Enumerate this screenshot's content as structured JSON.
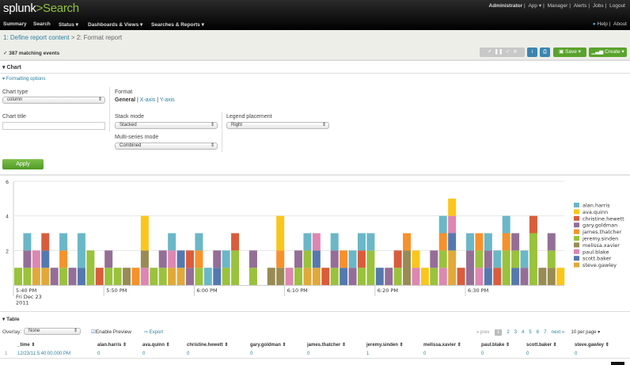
{
  "header": {
    "logo_brand": "splunk",
    "logo_sep": ">",
    "logo_app": "Search",
    "account": [
      "Administrator",
      "App ▾",
      "Manager",
      "Alerts",
      "Jobs",
      "Logout"
    ],
    "nav": [
      "Summary",
      "Search",
      "Status ▾",
      "Dashboards & Views ▾",
      "Searches & Reports ▾"
    ],
    "help": "Help",
    "about": "About"
  },
  "breadcrumb": {
    "step1": "1: Define report content",
    "sep": " > ",
    "step2": "2: Format report"
  },
  "status": {
    "check_icon": "✓",
    "matching": "387 matching events"
  },
  "toolbar": {
    "save": "Save ▾",
    "create": "Create ▾",
    "info": "i",
    "print": "⎙"
  },
  "chart_section": {
    "title": "Chart",
    "formatting": "Formatting options",
    "chart_type_label": "Chart type",
    "chart_type_value": "column",
    "format_label": "Format",
    "format_general": "General",
    "format_xaxis": "X-axis",
    "format_yaxis": "Y-axis",
    "chart_title_label": "Chart title",
    "chart_title_value": "",
    "stack_mode_label": "Stack mode",
    "stack_mode_value": "Stacked",
    "multi_series_label": "Multi-series mode",
    "multi_series_value": "Combined",
    "legend_label": "Legend placement",
    "legend_value": "Right",
    "apply": "Apply"
  },
  "chart_data": {
    "type": "bar",
    "stacked": true,
    "legend_placement": "right",
    "grid": true,
    "ylim": [
      0,
      6
    ],
    "yticks": [
      "2",
      "4",
      "6"
    ],
    "xticks": [
      "5:40 PM",
      "5:50 PM",
      "6:00 PM",
      "6:10 PM",
      "6:20 PM",
      "6:30 PM"
    ],
    "xtick_sub": [
      "Fri Dec 23",
      "2011"
    ],
    "x_start": "2011-12-23 17:40",
    "x_step_minutes": 1,
    "series": [
      {
        "name": "alan.harris",
        "color": "#6ab7c8",
        "values": [
          0,
          1,
          0,
          0,
          0,
          1,
          0,
          2,
          0,
          0,
          0,
          0,
          0,
          0,
          0,
          0,
          0,
          1,
          0,
          0,
          1,
          1,
          0,
          1,
          0,
          0,
          0,
          0,
          0,
          0,
          0,
          0,
          1,
          0,
          0,
          1,
          0,
          1,
          1,
          1,
          0,
          0,
          0,
          0,
          0,
          0,
          0,
          1,
          0,
          0,
          1,
          0,
          1,
          1,
          1,
          0,
          1,
          0,
          0,
          0,
          0
        ]
      },
      {
        "name": "ava.quinn",
        "color": "#fbc61c",
        "values": [
          0,
          0,
          0,
          0,
          0,
          0,
          0,
          0,
          0,
          0,
          0,
          0,
          0,
          0,
          2,
          0,
          0,
          0,
          0,
          0,
          0,
          0,
          0,
          0,
          0,
          0,
          0,
          0,
          0,
          2,
          0,
          0,
          0,
          0,
          0,
          0,
          0,
          0,
          0,
          0,
          0,
          0,
          0,
          0,
          1,
          1,
          0,
          0,
          1,
          0,
          0,
          0,
          0,
          0,
          0,
          0,
          0,
          0,
          0,
          0,
          1
        ]
      },
      {
        "name": "christine.hewett",
        "color": "#d95d3c",
        "values": [
          0,
          0,
          0,
          1,
          0,
          0,
          0,
          0,
          0,
          1,
          0,
          0,
          0,
          0,
          0,
          0,
          0,
          0,
          0,
          1,
          0,
          0,
          0,
          0,
          1,
          0,
          0,
          0,
          0,
          0,
          0,
          0,
          0,
          0,
          1,
          0,
          0,
          0,
          1,
          0,
          0,
          0,
          1,
          0,
          0,
          0,
          0,
          0,
          0,
          1,
          0,
          0,
          0,
          1,
          0,
          0,
          0,
          1,
          0,
          0,
          0
        ]
      },
      {
        "name": "gary.goldman",
        "color": "#956e97",
        "values": [
          0,
          1,
          0,
          0,
          1,
          0,
          1,
          0,
          0,
          0,
          1,
          0,
          0,
          0,
          0,
          0,
          1,
          0,
          0,
          1,
          0,
          0,
          1,
          0,
          0,
          0,
          1,
          0,
          0,
          0,
          0,
          1,
          0,
          0,
          0,
          1,
          0,
          1,
          0,
          0,
          0,
          1,
          0,
          0,
          0,
          0,
          1,
          0,
          0,
          0,
          2,
          0,
          1,
          0,
          0,
          1,
          1,
          0,
          0,
          1,
          0
        ]
      },
      {
        "name": "james.thatcher",
        "color": "#f7912b",
        "values": [
          0,
          0,
          0,
          0,
          0,
          1,
          0,
          0,
          0,
          0,
          0,
          0,
          0,
          1,
          0,
          0,
          0,
          0,
          0,
          0,
          1,
          0,
          0,
          0,
          0,
          0,
          0,
          0,
          0,
          1,
          0,
          0,
          0,
          0,
          0,
          0,
          1,
          0,
          0,
          0,
          0,
          0,
          0,
          1,
          0,
          0,
          0,
          1,
          0,
          0,
          0,
          1,
          0,
          0,
          1,
          0,
          0,
          0,
          0,
          0,
          0
        ]
      },
      {
        "name": "jeremy.sinden",
        "color": "#9ac23c",
        "values": [
          1,
          1,
          0,
          0,
          0,
          1,
          0,
          0,
          2,
          0,
          1,
          1,
          0,
          0,
          0,
          1,
          1,
          0,
          0,
          0,
          1,
          0,
          0,
          1,
          2,
          0,
          1,
          0,
          0,
          0,
          0,
          1,
          1,
          0,
          0,
          1,
          0,
          0,
          1,
          2,
          0,
          0,
          1,
          0,
          0,
          0,
          1,
          1,
          0,
          0,
          0,
          1,
          0,
          0,
          2,
          1,
          0,
          3,
          0,
          1,
          0
        ]
      },
      {
        "name": "melissa.xavier",
        "color": "#998b54",
        "values": [
          0,
          0,
          0,
          0,
          0,
          0,
          0,
          0,
          0,
          0,
          0,
          0,
          1,
          0,
          1,
          0,
          0,
          0,
          0,
          0,
          0,
          0,
          0,
          0,
          0,
          0,
          0,
          0,
          1,
          1,
          0,
          0,
          0,
          0,
          0,
          0,
          0,
          0,
          0,
          0,
          0,
          0,
          0,
          2,
          0,
          0,
          0,
          0,
          0,
          0,
          0,
          0,
          0,
          0,
          0,
          0,
          0,
          0,
          1,
          1,
          0
        ]
      },
      {
        "name": "paul.blake",
        "color": "#dd87b1",
        "values": [
          0,
          0,
          1,
          0,
          0,
          0,
          0,
          0,
          0,
          0,
          0,
          0,
          0,
          0,
          1,
          0,
          0,
          1,
          0,
          0,
          0,
          0,
          0,
          0,
          0,
          0,
          0,
          0,
          0,
          0,
          1,
          0,
          0,
          1,
          0,
          0,
          0,
          0,
          0,
          0,
          0,
          0,
          0,
          0,
          1,
          0,
          0,
          1,
          1,
          0,
          0,
          1,
          0,
          0,
          0,
          0,
          0,
          0,
          0,
          0,
          0
        ]
      },
      {
        "name": "scott.baker",
        "color": "#5479af",
        "values": [
          0,
          0,
          0,
          1,
          0,
          0,
          0,
          1,
          0,
          0,
          0,
          0,
          0,
          0,
          0,
          0,
          0,
          0,
          1,
          0,
          0,
          0,
          1,
          0,
          0,
          0,
          0,
          0,
          0,
          0,
          0,
          0,
          0,
          1,
          0,
          0,
          1,
          0,
          0,
          0,
          1,
          0,
          0,
          0,
          0,
          0,
          0,
          0,
          1,
          0,
          0,
          0,
          1,
          0,
          0,
          1,
          0,
          0,
          0,
          0,
          0
        ]
      },
      {
        "name": "steve.gawley",
        "color": "#e1a93a",
        "values": [
          0,
          0,
          1,
          1,
          0,
          0,
          0,
          0,
          0,
          0,
          0,
          0,
          0,
          0,
          0,
          0,
          0,
          1,
          1,
          0,
          0,
          0,
          0,
          0,
          0,
          0,
          0,
          0,
          0,
          0,
          0,
          0,
          1,
          1,
          0,
          0,
          0,
          0,
          0,
          0,
          0,
          0,
          0,
          0,
          0,
          0,
          0,
          0,
          2,
          0,
          0,
          0,
          0,
          0,
          0,
          0,
          0,
          0,
          0,
          0,
          0
        ]
      }
    ]
  },
  "table_section": {
    "title": "Table",
    "overlay_label": "Overlay:",
    "overlay_value": "None",
    "enable_preview": "Enable Preview",
    "export": "Export",
    "pagination": {
      "prev": "« prev",
      "pages": [
        "1",
        "2",
        "3",
        "4",
        "5",
        "6",
        "7"
      ],
      "current": "1",
      "next": "next »",
      "per_page": "10 per page ▾"
    },
    "columns": [
      "_time ⇕",
      "alan.harris ⇕",
      "ava.quinn ⇕",
      "christine.hewett ⇕",
      "gary.goldman ⇕",
      "james.thatcher ⇕",
      "jeremy.sinden ⇕",
      "melissa.xavier ⇕",
      "paul.blake ⇕",
      "scott.baker ⇕",
      "steve.gawley ⇕"
    ],
    "rows": [
      {
        "index": "1",
        "cells": [
          "12/23/11 5:40:00.000 PM",
          "0",
          "0",
          "0",
          "0",
          "0",
          "1",
          "0",
          "0",
          "0",
          "0"
        ]
      }
    ]
  }
}
